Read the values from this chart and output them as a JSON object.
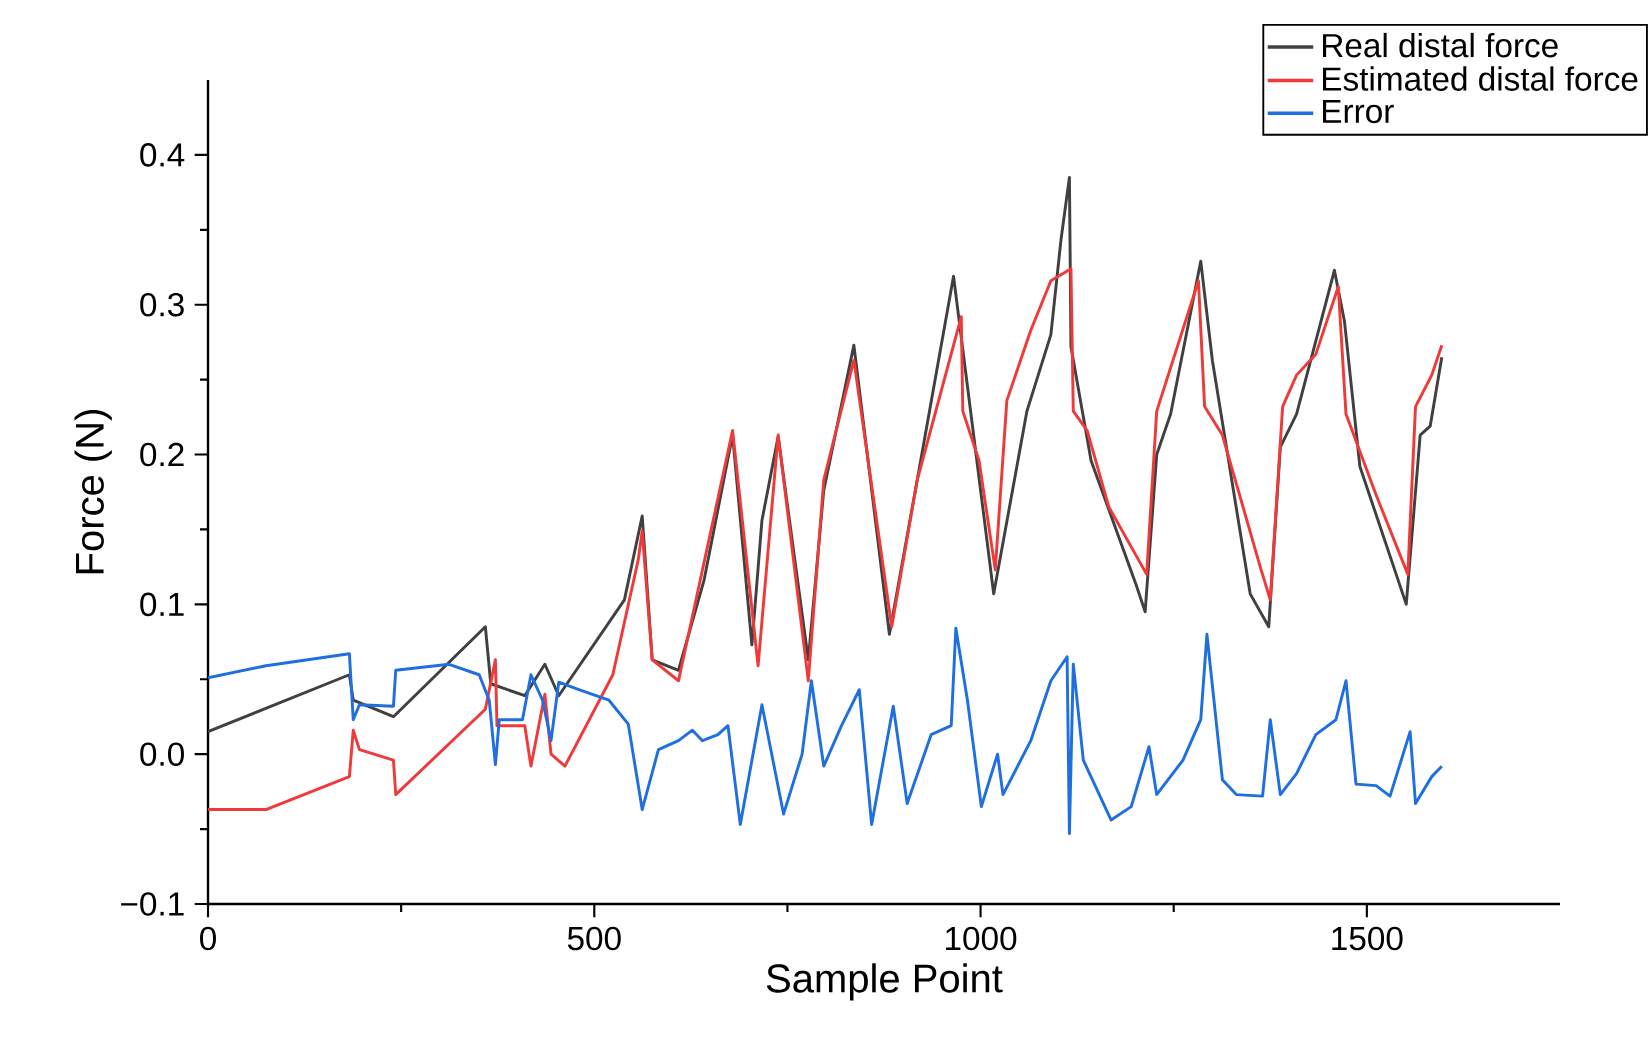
{
  "chart_data": {
    "type": "line",
    "xlabel": "Sample Point",
    "ylabel": "Force (N)",
    "xlim": [
      0,
      1750
    ],
    "ylim": [
      -0.1,
      0.45
    ],
    "xticks": [
      0,
      500,
      1000,
      1500
    ],
    "yticks": [
      {
        "value": -0.1,
        "label": "−0.1"
      },
      {
        "value": 0,
        "label": "0.0"
      },
      {
        "value": 0.1,
        "label": "0.1"
      },
      {
        "value": 0.2,
        "label": "0.2"
      },
      {
        "value": 0.3,
        "label": "0.3"
      },
      {
        "value": 0.4,
        "label": "0.4"
      }
    ],
    "legend": "top right",
    "series": [
      {
        "name": "Real distal force",
        "color": "#404040",
        "x": [
          0,
          183,
          188,
          240,
          359,
          366,
          410,
          436,
          454,
          539,
          562,
          575,
          609,
          642,
          679,
          704,
          717,
          738,
          777,
          797,
          836,
          882,
          918,
          965,
          1017,
          1060,
          1091,
          1104,
          1115,
          1117,
          1143,
          1202,
          1213,
          1228,
          1246,
          1285,
          1300,
          1349,
          1373,
          1388,
          1409,
          1458,
          1471,
          1491,
          1538,
          1551,
          1569,
          1582,
          1597
        ],
        "values": [
          0.015,
          0.053,
          0.036,
          0.025,
          0.085,
          0.047,
          0.039,
          0.06,
          0.039,
          0.103,
          0.159,
          0.063,
          0.056,
          0.116,
          0.213,
          0.073,
          0.156,
          0.212,
          0.063,
          0.176,
          0.273,
          0.08,
          0.183,
          0.319,
          0.107,
          0.229,
          0.28,
          0.343,
          0.385,
          0.272,
          0.196,
          0.112,
          0.095,
          0.2,
          0.227,
          0.329,
          0.263,
          0.107,
          0.085,
          0.205,
          0.227,
          0.323,
          0.289,
          0.192,
          0.12,
          0.1,
          0.213,
          0.219,
          0.265
        ]
      },
      {
        "name": "Estimated distal force",
        "color": "#f03a3a",
        "x": [
          0,
          75,
          183,
          188,
          196,
          240,
          243,
          359,
          372,
          374,
          410,
          418,
          436,
          444,
          462,
          524,
          557,
          562,
          575,
          609,
          679,
          712,
          738,
          777,
          797,
          836,
          885,
          918,
          975,
          977,
          998,
          1019,
          1034,
          1065,
          1091,
          1117,
          1120,
          1138,
          1166,
          1215,
          1228,
          1282,
          1290,
          1313,
          1362,
          1375,
          1391,
          1409,
          1434,
          1463,
          1473,
          1512,
          1553,
          1563,
          1584,
          1597
        ],
        "values": [
          -0.037,
          -0.037,
          -0.015,
          0.016,
          0.003,
          -0.004,
          -0.027,
          0.03,
          0.063,
          0.019,
          0.019,
          -0.008,
          0.04,
          0.0,
          -0.008,
          0.053,
          0.13,
          0.149,
          0.063,
          0.049,
          0.216,
          0.059,
          0.213,
          0.049,
          0.183,
          0.263,
          0.085,
          0.183,
          0.292,
          0.229,
          0.196,
          0.123,
          0.236,
          0.283,
          0.316,
          0.324,
          0.229,
          0.216,
          0.165,
          0.12,
          0.229,
          0.316,
          0.232,
          0.213,
          0.125,
          0.103,
          0.232,
          0.253,
          0.267,
          0.312,
          0.227,
          0.173,
          0.12,
          0.232,
          0.253,
          0.273
        ]
      },
      {
        "name": "Error",
        "color": "#1f6fe0",
        "x": [
          0,
          75,
          183,
          188,
          196,
          240,
          243,
          312,
          351,
          364,
          372,
          377,
          407,
          418,
          433,
          444,
          454,
          480,
          519,
          544,
          562,
          583,
          609,
          627,
          640,
          660,
          673,
          689,
          717,
          745,
          769,
          781,
          797,
          820,
          843,
          859,
          887,
          905,
          936,
          962,
          968,
          983,
          1001,
          1022,
          1029,
          1065,
          1091,
          1112,
          1115,
          1120,
          1133,
          1169,
          1195,
          1218,
          1228,
          1262,
          1285,
          1293,
          1313,
          1331,
          1365,
          1375,
          1388,
          1409,
          1434,
          1460,
          1473,
          1486,
          1512,
          1530,
          1556,
          1563,
          1584,
          1597
        ],
        "values": [
          0.051,
          0.059,
          0.067,
          0.023,
          0.033,
          0.032,
          0.056,
          0.06,
          0.053,
          0.036,
          -0.007,
          0.023,
          0.023,
          0.053,
          0.036,
          0.009,
          0.048,
          0.043,
          0.036,
          0.02,
          -0.037,
          0.003,
          0.009,
          0.016,
          0.009,
          0.013,
          0.019,
          -0.047,
          0.033,
          -0.04,
          0,
          0.049,
          -0.008,
          0.019,
          0.043,
          -0.047,
          0.032,
          -0.033,
          0.013,
          0.019,
          0.084,
          0.036,
          -0.035,
          0,
          -0.027,
          0.009,
          0.049,
          0.065,
          -0.053,
          0.06,
          -0.004,
          -0.044,
          -0.035,
          0.005,
          -0.027,
          -0.004,
          0.023,
          0.08,
          -0.017,
          -0.027,
          -0.028,
          0.023,
          -0.027,
          -0.013,
          0.013,
          0.023,
          0.049,
          -0.02,
          -0.021,
          -0.028,
          0.015,
          -0.033,
          -0.015,
          -0.008
        ]
      }
    ]
  }
}
